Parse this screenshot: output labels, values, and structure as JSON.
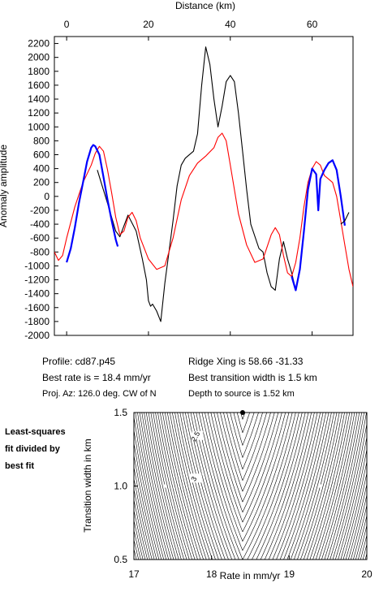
{
  "chart_data": [
    {
      "type": "line",
      "xlabel": "Distance (km)",
      "ylabel": "Anomaly amplitude",
      "xlim": [
        -3,
        70
      ],
      "ylim": [
        -2000,
        2300
      ],
      "x_ticks": [
        0,
        20,
        40,
        60
      ],
      "y_ticks": [
        -2000,
        -1800,
        -1600,
        -1400,
        -1200,
        -1000,
        -800,
        -600,
        -400,
        -200,
        0,
        200,
        400,
        600,
        800,
        1000,
        1200,
        1400,
        1600,
        1800,
        2000,
        2200
      ],
      "series": [
        {
          "color": "#000000",
          "x": [
            7.5,
            10,
            12,
            13,
            15,
            17,
            18.5,
            19.5,
            20,
            20.5,
            21,
            22,
            23,
            24,
            25,
            26,
            27,
            28,
            29,
            31,
            32,
            33,
            34,
            35,
            36,
            37,
            38,
            39,
            40,
            41,
            42,
            43,
            44,
            45,
            47,
            48,
            49,
            50,
            51,
            52,
            53,
            54,
            55,
            56
          ],
          "y": [
            380,
            -100,
            -500,
            -580,
            -270,
            -500,
            -900,
            -1200,
            -1500,
            -1580,
            -1550,
            -1650,
            -1800,
            -1250,
            -800,
            -350,
            150,
            450,
            550,
            650,
            900,
            1600,
            2150,
            1900,
            1400,
            1000,
            1300,
            1650,
            1740,
            1650,
            1200,
            650,
            100,
            -400,
            -750,
            -800,
            -1100,
            -1300,
            -1350,
            -900,
            -650,
            -900,
            -1100,
            -1350
          ]
        },
        {
          "color": "#0000ff",
          "x": [
            0,
            1,
            2,
            3,
            4,
            5,
            6,
            6.5,
            7,
            8,
            9,
            10,
            11,
            12,
            12.5
          ],
          "y": [
            -950,
            -750,
            -450,
            -100,
            200,
            500,
            700,
            740,
            720,
            600,
            280,
            -50,
            -350,
            -620,
            -720
          ]
        },
        {
          "color": "#ff0000",
          "x": [
            -3,
            -2,
            -1,
            0,
            2,
            4,
            6,
            7,
            8,
            9,
            10,
            11,
            12,
            13,
            14,
            15,
            16,
            17,
            18,
            20,
            22,
            24,
            26,
            28,
            30,
            32,
            34,
            36,
            37,
            38,
            39,
            40,
            41,
            42,
            44,
            46,
            48,
            50,
            51,
            52,
            53,
            54,
            55,
            56,
            57,
            58,
            59,
            60,
            61,
            62,
            63,
            64,
            65,
            66,
            67,
            68,
            69,
            70
          ],
          "y": [
            -800,
            -920,
            -850,
            -600,
            -150,
            200,
            450,
            620,
            720,
            650,
            380,
            50,
            -300,
            -550,
            -500,
            -300,
            -230,
            -350,
            -600,
            -900,
            -1050,
            -1000,
            -600,
            -50,
            300,
            480,
            580,
            700,
            850,
            910,
            800,
            450,
            100,
            -250,
            -700,
            -950,
            -900,
            -550,
            -450,
            -550,
            -850,
            -1100,
            -1150,
            -950,
            -600,
            -150,
            200,
            400,
            500,
            450,
            300,
            250,
            200,
            0,
            -350,
            -700,
            -1050,
            -1300
          ]
        }
      ]
    },
    {
      "type": "contour",
      "xlabel": "Rate in mm/yr",
      "ylabel": "Transition width in km",
      "xlim": [
        17,
        20
      ],
      "ylim": [
        0.5,
        1.5
      ],
      "x_ticks": [
        17,
        18,
        19,
        20
      ],
      "y_ticks": [
        0.5,
        1.0,
        1.5
      ],
      "contour_labels": [
        "2.5",
        "3"
      ],
      "best_fit": {
        "x": 18.4,
        "y": 1.5
      },
      "title_lines": [
        "Least-squares",
        "fit divided by",
        "best fit"
      ]
    }
  ],
  "info": {
    "profile": "Profile: cd87.p45",
    "best_rate": "Best rate is = 18.4 mm/yr",
    "proj_az": "Proj. Az: 126.0 deg. CW of N",
    "ridge_xing": "Ridge Xing is 58.66 -31.33",
    "best_transition": "Best transition width is 1.5 km",
    "depth": "Depth to source is    1.52 km"
  }
}
